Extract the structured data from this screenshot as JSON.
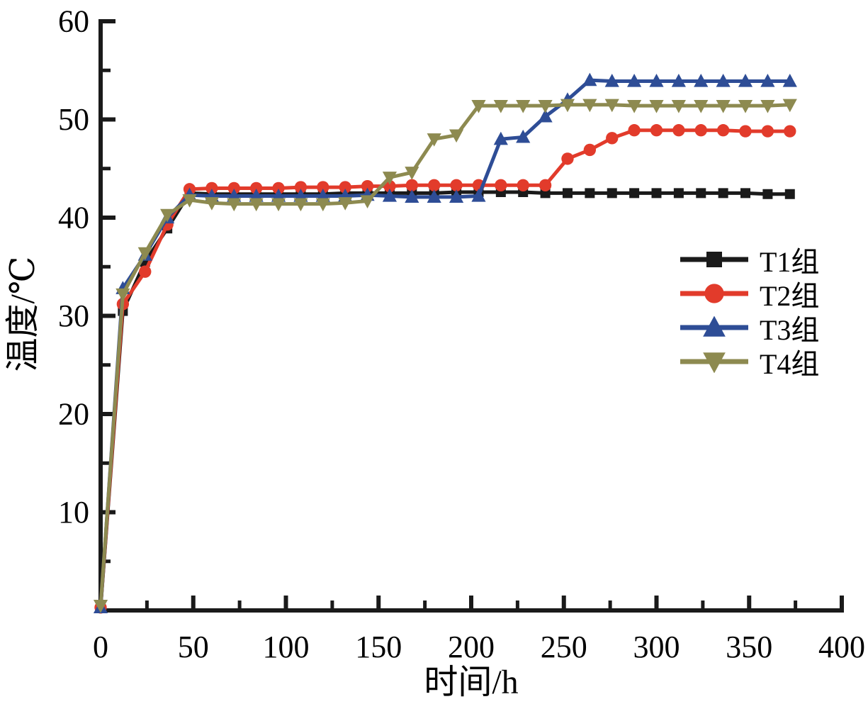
{
  "figure": {
    "background": "#ffffff"
  },
  "chart_data": {
    "type": "line",
    "title": "",
    "xlabel": "时间/h",
    "ylabel": "温度/℃",
    "xlim": [
      0,
      400
    ],
    "ylim": [
      0,
      60
    ],
    "x_major_ticks": [
      0,
      50,
      100,
      150,
      200,
      250,
      300,
      350,
      400
    ],
    "x_minor_ticks": [
      25,
      75,
      125,
      175,
      225,
      275,
      325,
      375
    ],
    "y_major_ticks": [
      10,
      20,
      30,
      40,
      50,
      60
    ],
    "y_minor_ticks": [
      5,
      15,
      25,
      35,
      45,
      55
    ],
    "grid": false,
    "legend_position": "right-middle",
    "axis_color": "#1a1a1a",
    "x": [
      0,
      12,
      24,
      36,
      48,
      60,
      72,
      84,
      96,
      108,
      120,
      132,
      144,
      156,
      168,
      180,
      192,
      204,
      216,
      228,
      240,
      252,
      264,
      276,
      288,
      300,
      312,
      324,
      336,
      348,
      360,
      372
    ],
    "series": [
      {
        "name": "T1组",
        "color": "#1a1a1a",
        "marker": "square",
        "values": [
          0.3,
          30.5,
          35.5,
          38.9,
          42.5,
          42.4,
          42.4,
          42.4,
          42.4,
          42.4,
          42.4,
          42.5,
          42.5,
          42.5,
          42.5,
          42.5,
          42.6,
          42.6,
          42.6,
          42.6,
          42.5,
          42.5,
          42.5,
          42.5,
          42.5,
          42.5,
          42.5,
          42.5,
          42.5,
          42.5,
          42.4,
          42.4
        ]
      },
      {
        "name": "T2组",
        "color": "#e23b2b",
        "marker": "circle",
        "values": [
          0.3,
          31.2,
          34.5,
          39.3,
          42.9,
          43.0,
          43.0,
          43.0,
          43.0,
          43.1,
          43.1,
          43.1,
          43.2,
          43.2,
          43.3,
          43.3,
          43.3,
          43.3,
          43.3,
          43.3,
          43.3,
          46.0,
          46.9,
          48.1,
          48.9,
          48.9,
          48.9,
          48.9,
          48.9,
          48.8,
          48.8,
          48.8
        ]
      },
      {
        "name": "T3组",
        "color": "#2e4d96",
        "marker": "triangle-up",
        "values": [
          0.3,
          32.8,
          36.2,
          40.0,
          42.3,
          42.2,
          42.2,
          42.2,
          42.2,
          42.2,
          42.2,
          42.2,
          42.3,
          42.2,
          42.1,
          42.1,
          42.1,
          42.2,
          48.0,
          48.2,
          50.3,
          52.0,
          54.0,
          53.9,
          53.9,
          53.9,
          53.9,
          53.9,
          53.9,
          53.9,
          53.9,
          53.9
        ]
      },
      {
        "name": "T4组",
        "color": "#8d8a50",
        "marker": "triangle-down",
        "values": [
          0.5,
          32.2,
          36.4,
          40.3,
          41.8,
          41.5,
          41.4,
          41.4,
          41.4,
          41.4,
          41.4,
          41.5,
          41.7,
          44.1,
          44.6,
          48.0,
          48.4,
          51.4,
          51.4,
          51.4,
          51.4,
          51.5,
          51.5,
          51.5,
          51.4,
          51.4,
          51.4,
          51.4,
          51.4,
          51.4,
          51.4,
          51.5
        ]
      }
    ]
  }
}
